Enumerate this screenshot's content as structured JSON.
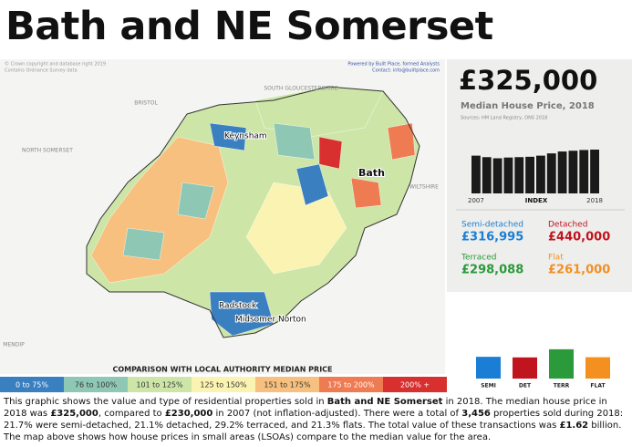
{
  "header": {
    "title": "Bath and NE Somerset"
  },
  "map": {
    "credit_left": [
      "© Crown copyright and database right 2019",
      "Contains Ordnance Survey data"
    ],
    "credit_right": [
      "Powered by Built Place, formed Analysts",
      "Contact: info@builtplace.com"
    ],
    "labels": [
      "BRISTOL",
      "SOUTH GLOUCESTERSHIRE",
      "NORTH SOMERSET",
      "WILTSHIRE",
      "MENDIP",
      "Keynsham",
      "Bath",
      "Radstock",
      "Midsomer Norton"
    ],
    "legend_title": "COMPARISON WITH LOCAL AUTHORITY MEDIAN PRICE",
    "legend": [
      {
        "label": "0 to 75%",
        "color": "#3a7fc0"
      },
      {
        "label": "76 to 100%",
        "color": "#8fc7b5"
      },
      {
        "label": "101 to 125%",
        "color": "#cde6a8"
      },
      {
        "label": "125 to 150%",
        "color": "#fbf3b2"
      },
      {
        "label": "151 to 175%",
        "color": "#f8c07e"
      },
      {
        "label": "175 to 200%",
        "color": "#ef7b52"
      },
      {
        "label": "200% +",
        "color": "#d8302f"
      }
    ]
  },
  "summary": {
    "price": "£325,000",
    "price_label": "Median House Price, 2018",
    "sources": "Sources: HM Land Registry, ONS 2018",
    "types": [
      {
        "name": "Semi-detached",
        "price": "£316,995",
        "color": "#1a7fd4"
      },
      {
        "name": "Detached",
        "price": "£440,000",
        "color": "#c0141e"
      },
      {
        "name": "Terraced",
        "price": "£298,088",
        "color": "#2a9a3a"
      },
      {
        "name": "Flat",
        "price": "£261,000",
        "color": "#f39020"
      }
    ]
  },
  "chart_data": [
    {
      "type": "bar",
      "x_label": "INDEX",
      "categories": [
        "2007",
        null,
        null,
        null,
        null,
        null,
        null,
        null,
        null,
        null,
        null,
        "2018"
      ],
      "values": [
        100,
        96,
        93,
        95,
        96,
        97,
        100,
        106,
        111,
        113,
        115,
        116
      ],
      "color": "#1a1a1a"
    },
    {
      "type": "bar",
      "categories": [
        "SEMI",
        "DET",
        "TERR",
        "FLAT"
      ],
      "values": [
        21.7,
        21.1,
        29.2,
        21.3
      ],
      "colors": [
        "#1a7fd4",
        "#c0141e",
        "#2a9a3a",
        "#f39020"
      ]
    }
  ],
  "description": [
    "This graphic shows the value and type of residential properties sold in ",
    "Bath and NE Somerset",
    " in 2018. The median house price in 2018 was ",
    "£325,000",
    ", compared to ",
    "£230,000",
    " in 2007 (not inflation-adjusted). There were a total of ",
    "3,456",
    " properties sold during 2018: 21.7% were semi-detached, 21.1% detached, 29.2% terraced, and 21.3% flats. The total value of these transactions was ",
    "£1.62",
    " billion. The map above shows how house prices in small areas (LSOAs) compare to the median value for the area."
  ]
}
